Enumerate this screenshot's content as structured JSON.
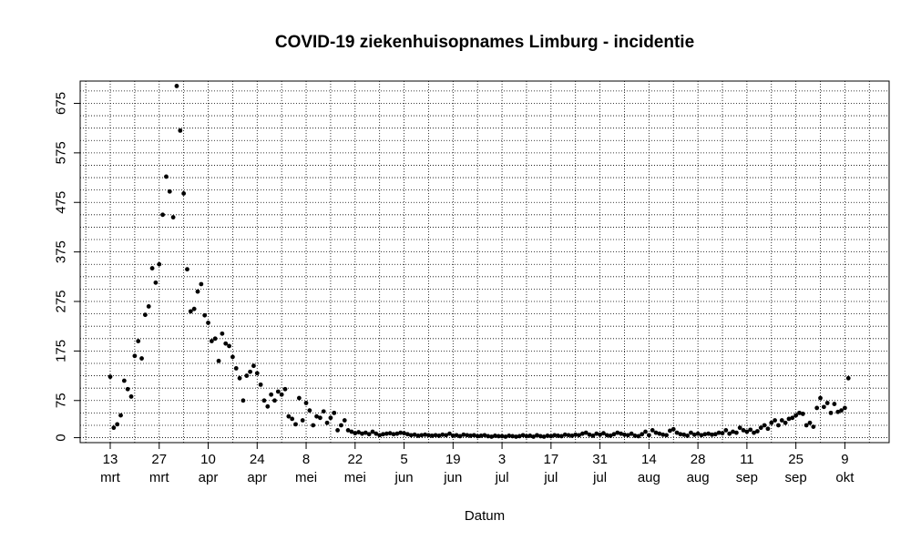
{
  "chart_data": {
    "type": "scatter",
    "title": "COVID-19 ziekenhuisopnames Limburg - incidentie",
    "xlabel": "Datum",
    "ylabel": "",
    "ylim": [
      -10,
      720
    ],
    "grid": true,
    "y_ticks": [
      0,
      75,
      175,
      275,
      375,
      475,
      575,
      675
    ],
    "x_ticks": [
      {
        "day": 13,
        "month": "mrt"
      },
      {
        "day": 27,
        "month": "mrt"
      },
      {
        "day": 10,
        "month": "apr"
      },
      {
        "day": 24,
        "month": "apr"
      },
      {
        "day": 8,
        "month": "mei"
      },
      {
        "day": 22,
        "month": "mei"
      },
      {
        "day": 5,
        "month": "jun"
      },
      {
        "day": 19,
        "month": "jun"
      },
      {
        "day": 3,
        "month": "jul"
      },
      {
        "day": 17,
        "month": "jul"
      },
      {
        "day": 31,
        "month": "jul"
      },
      {
        "day": 14,
        "month": "aug"
      },
      {
        "day": 28,
        "month": "aug"
      },
      {
        "day": 11,
        "month": "sep"
      },
      {
        "day": 25,
        "month": "sep"
      },
      {
        "day": 9,
        "month": "okt"
      }
    ],
    "start_date": "2020-03-13",
    "values": [
      123,
      20,
      27,
      45,
      115,
      98,
      83,
      165,
      195,
      160,
      248,
      265,
      342,
      313,
      350,
      450,
      527,
      497,
      445,
      710,
      620,
      493,
      340,
      255,
      260,
      295,
      310,
      247,
      232,
      195,
      200,
      155,
      210,
      190,
      185,
      163,
      140,
      120,
      75,
      125,
      133,
      145,
      130,
      107,
      75,
      63,
      87,
      75,
      93,
      87,
      98,
      43,
      38,
      27,
      80,
      35,
      70,
      55,
      25,
      43,
      40,
      53,
      30,
      40,
      50,
      15,
      25,
      35,
      15,
      12,
      9,
      11,
      8,
      10,
      7,
      12,
      8,
      5,
      7,
      8,
      9,
      7,
      8,
      10,
      9,
      7,
      5,
      6,
      4,
      5,
      6,
      5,
      4,
      5,
      4,
      6,
      5,
      8,
      4,
      5,
      3,
      6,
      5,
      4,
      5,
      3,
      4,
      5,
      3,
      2,
      4,
      3,
      3,
      2,
      4,
      3,
      2,
      3,
      5,
      3,
      4,
      2,
      5,
      3,
      2,
      4,
      3,
      5,
      4,
      3,
      6,
      5,
      4,
      6,
      5,
      8,
      10,
      6,
      4,
      8,
      6,
      9,
      5,
      4,
      7,
      10,
      8,
      6,
      5,
      8,
      4,
      3,
      7,
      12,
      5,
      15,
      10,
      8,
      6,
      5,
      14,
      17,
      10,
      7,
      6,
      4,
      10,
      6,
      8,
      5,
      7,
      8,
      6,
      7,
      10,
      9,
      15,
      8,
      12,
      10,
      20,
      15,
      12,
      16,
      10,
      13,
      20,
      25,
      18,
      30,
      35,
      25,
      35,
      30,
      38,
      40,
      45,
      50,
      48,
      25,
      30,
      22,
      60,
      80,
      62,
      70,
      50,
      68,
      52,
      55,
      60,
      120
    ]
  }
}
